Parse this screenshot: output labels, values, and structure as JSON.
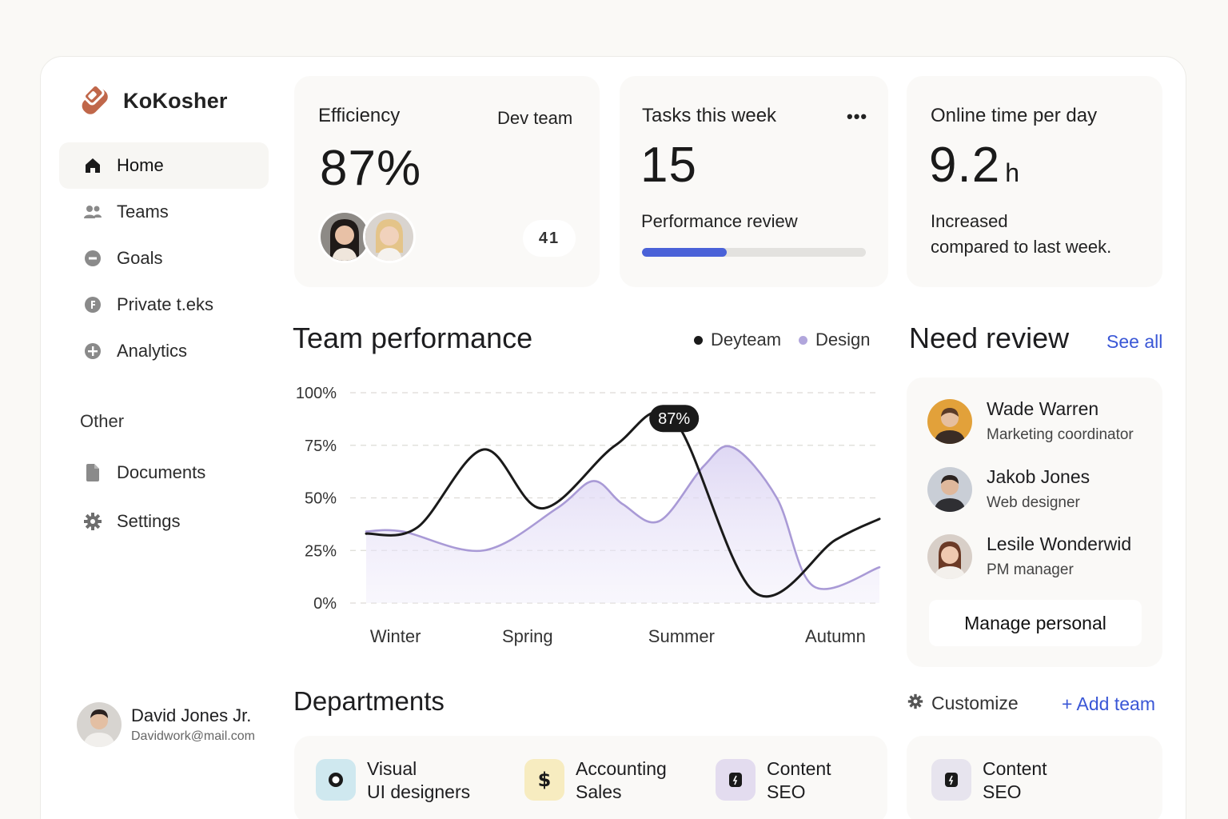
{
  "brand": {
    "name": "KoKosher",
    "accent": "#c0674a"
  },
  "nav": {
    "items": [
      {
        "label": "Home",
        "icon": "home-icon",
        "active": true
      },
      {
        "label": "Teams",
        "icon": "users-icon"
      },
      {
        "label": "Goals",
        "icon": "goal-icon"
      },
      {
        "label": "Private t.eks",
        "icon": "private-icon"
      },
      {
        "label": "Analytics",
        "icon": "analytics-icon"
      }
    ],
    "other_label": "Other",
    "other_items": [
      {
        "label": "Documents",
        "icon": "document-icon"
      },
      {
        "label": "Settings",
        "icon": "gear-icon"
      }
    ]
  },
  "user": {
    "name": "David Jones Jr.",
    "email": "Davidwork@mail.com"
  },
  "efficiency": {
    "label": "Efficiency",
    "team": "Dev team",
    "value": "87%",
    "count": "41"
  },
  "tasks": {
    "label": "Tasks this week",
    "value": "15",
    "sub_label": "Performance review",
    "progress": 0.38,
    "menu": "•••"
  },
  "online": {
    "label": "Online time per day",
    "value": "9.2",
    "unit": "h",
    "line1": "Increased",
    "line2": "compared to last week."
  },
  "performance": {
    "title": "Team performance",
    "legend": [
      {
        "name": "Deyteam",
        "color": "#1a1a1a"
      },
      {
        "name": "Design",
        "color": "#a99ad6"
      }
    ],
    "tooltip": "87%"
  },
  "chart_data": {
    "type": "line",
    "x_labels": [
      "Winter",
      "Spring",
      "Summer",
      "Autumn"
    ],
    "y_ticks": [
      "100%",
      "75%",
      "50%",
      "25%",
      "0%"
    ],
    "ylim": [
      0,
      100
    ],
    "grid": true,
    "series": [
      {
        "name": "Deyteam",
        "color": "#1a1a1a",
        "x": [
          0,
          0.35,
          0.8,
          1.2,
          1.7,
          2.1,
          2.65,
          3.2,
          3.5
        ],
        "values": [
          33,
          36,
          73,
          45,
          75,
          87,
          5,
          30,
          40
        ]
      },
      {
        "name": "Design",
        "color": "#a99ad6",
        "area": true,
        "x": [
          0,
          0.25,
          0.8,
          1.3,
          1.55,
          1.75,
          2.0,
          2.3,
          2.5,
          2.8,
          3.05,
          3.5
        ],
        "values": [
          34,
          34,
          25,
          45,
          58,
          47,
          39,
          65,
          74,
          50,
          8,
          17
        ]
      }
    ]
  },
  "review": {
    "title": "Need review",
    "see_all": "See all",
    "people": [
      {
        "name": "Wade Warren",
        "role": "Marketing coordinator",
        "bg": "#e2a13a"
      },
      {
        "name": "Jakob Jones",
        "role": "Web designer",
        "bg": "#c9ced6"
      },
      {
        "name": "Lesile Wonderwid",
        "role": "PM manager",
        "bg": "#d8cfc8"
      }
    ],
    "manage_label": "Manage personal"
  },
  "departments": {
    "title": "Departments",
    "customize": "Customize",
    "add_team": "+ Add team",
    "items": [
      {
        "line1": "Visual",
        "line2": "UI designers",
        "icon_bg": "#cfe8ef",
        "icon": "circle-icon"
      },
      {
        "line1": "Accounting",
        "line2": "Sales",
        "icon_bg": "#f7ecc0",
        "icon": "dollar-icon"
      },
      {
        "line1": "Content",
        "line2": "SEO",
        "icon_bg": "#e3dcef",
        "icon": "content-icon"
      },
      {
        "line1": "Content",
        "line2": "SEO",
        "icon_bg": "#e7e4ee",
        "icon": "content-icon"
      }
    ]
  }
}
